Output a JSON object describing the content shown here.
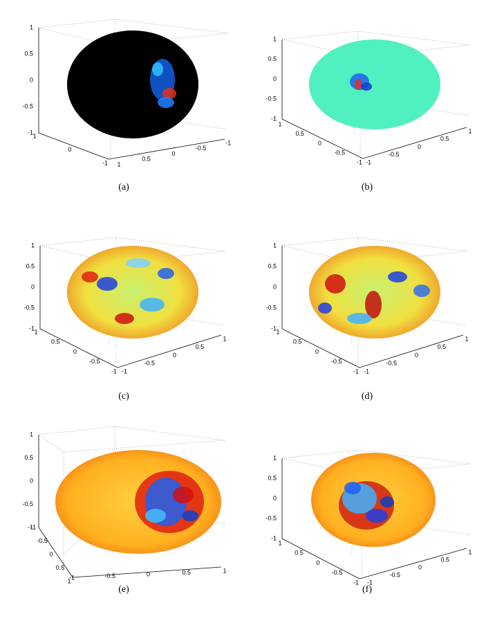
{
  "panels": [
    {
      "caption": "(a)",
      "z_ticks": [
        "1",
        "0.5",
        "0",
        "-0.5",
        "-1"
      ],
      "left_ticks": [
        "1",
        "0",
        "-1"
      ],
      "right_ticks": [
        "1",
        "0.5",
        "0",
        "-0.5",
        "-1"
      ]
    },
    {
      "caption": "(b)",
      "z_ticks": [
        "1",
        "0.5",
        "0",
        "-0.5",
        "-1"
      ],
      "left_ticks": [
        "1",
        "0.5",
        "0",
        "-0.5",
        "-1"
      ],
      "right_ticks": [
        "-1",
        "-0.5",
        "0",
        "0.5",
        "1"
      ]
    },
    {
      "caption": "(c)",
      "z_ticks": [
        "1",
        "0.5",
        "0",
        "-0.5",
        "-1"
      ],
      "left_ticks": [
        "1",
        "0.5",
        "0",
        "-0.5",
        "-1"
      ],
      "right_ticks": [
        "-1",
        "-0.5",
        "0",
        "0.5",
        "1"
      ]
    },
    {
      "caption": "(d)",
      "z_ticks": [
        "1",
        "0.5",
        "0",
        "-0.5",
        "-1"
      ],
      "left_ticks": [
        "1",
        "0.5",
        "0",
        "-0.5",
        "-1"
      ],
      "right_ticks": [
        "-1",
        "-0.5",
        "0",
        "0.5",
        "1"
      ]
    },
    {
      "caption": "(e)",
      "z_ticks": [
        "1",
        "0.5",
        "0",
        "-0.5",
        "-1"
      ],
      "left_ticks": [
        "-1",
        "-0.5",
        "0",
        "0.5",
        "1"
      ],
      "right_ticks": [
        "-1",
        "-0.5",
        "0",
        "0.5",
        "1"
      ]
    },
    {
      "caption": "(f)",
      "z_ticks": [
        "1",
        "0.5",
        "0",
        "-0.5",
        "-1"
      ],
      "left_ticks": [
        "1",
        "0.5",
        "0",
        "-0.5",
        "-1"
      ],
      "right_ticks": [
        "-1",
        "-0.5",
        "0",
        "0.5",
        "1"
      ]
    }
  ]
}
